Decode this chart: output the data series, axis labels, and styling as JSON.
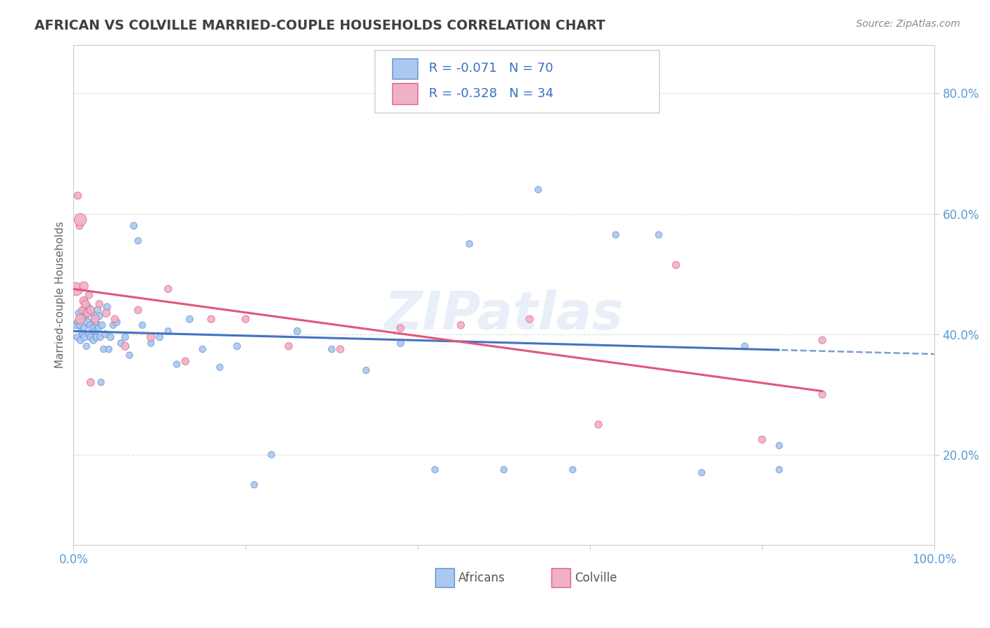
{
  "title": "AFRICAN VS COLVILLE MARRIED-COUPLE HOUSEHOLDS CORRELATION CHART",
  "source": "Source: ZipAtlas.com",
  "ylabel": "Married-couple Households",
  "watermark": "ZIPatlas",
  "africans": {
    "label": "Africans",
    "R": -0.071,
    "N": 70,
    "color": "#aac8f0",
    "edge_color": "#6090d0",
    "line_color": "#4472c4",
    "x": [
      0.003,
      0.004,
      0.005,
      0.006,
      0.007,
      0.008,
      0.009,
      0.01,
      0.011,
      0.012,
      0.012,
      0.013,
      0.014,
      0.015,
      0.016,
      0.017,
      0.018,
      0.019,
      0.02,
      0.021,
      0.022,
      0.023,
      0.024,
      0.025,
      0.026,
      0.027,
      0.028,
      0.029,
      0.03,
      0.031,
      0.032,
      0.033,
      0.035,
      0.037,
      0.039,
      0.041,
      0.043,
      0.046,
      0.05,
      0.055,
      0.06,
      0.065,
      0.07,
      0.075,
      0.08,
      0.09,
      0.1,
      0.11,
      0.12,
      0.135,
      0.15,
      0.17,
      0.19,
      0.21,
      0.23,
      0.26,
      0.3,
      0.34,
      0.38,
      0.42,
      0.46,
      0.5,
      0.54,
      0.58,
      0.63,
      0.68,
      0.73,
      0.78,
      0.82,
      0.82
    ],
    "y": [
      0.415,
      0.395,
      0.42,
      0.435,
      0.415,
      0.39,
      0.405,
      0.425,
      0.4,
      0.44,
      0.41,
      0.395,
      0.43,
      0.38,
      0.42,
      0.445,
      0.4,
      0.415,
      0.395,
      0.435,
      0.41,
      0.39,
      0.425,
      0.405,
      0.42,
      0.395,
      0.44,
      0.41,
      0.43,
      0.395,
      0.32,
      0.415,
      0.375,
      0.4,
      0.445,
      0.375,
      0.395,
      0.415,
      0.42,
      0.385,
      0.395,
      0.365,
      0.58,
      0.555,
      0.415,
      0.385,
      0.395,
      0.405,
      0.35,
      0.425,
      0.375,
      0.345,
      0.38,
      0.15,
      0.2,
      0.405,
      0.375,
      0.34,
      0.385,
      0.175,
      0.55,
      0.175,
      0.64,
      0.175,
      0.565,
      0.565,
      0.17,
      0.38,
      0.215,
      0.175
    ],
    "sizes": [
      55,
      45,
      50,
      45,
      45,
      50,
      40,
      55,
      45,
      50,
      45,
      55,
      50,
      45,
      55,
      50,
      45,
      45,
      50,
      45,
      45,
      50,
      45,
      50,
      45,
      50,
      55,
      45,
      50,
      45,
      45,
      50,
      45,
      50,
      55,
      45,
      50,
      45,
      55,
      45,
      50,
      45,
      50,
      45,
      45,
      45,
      50,
      45,
      45,
      50,
      45,
      45,
      50,
      45,
      45,
      50,
      45,
      45,
      50,
      45,
      45,
      45,
      45,
      45,
      45,
      45,
      45,
      45,
      45,
      45
    ]
  },
  "colville": {
    "label": "Colville",
    "R": -0.328,
    "N": 34,
    "color": "#f0b0c8",
    "edge_color": "#e06080",
    "line_color": "#e05878",
    "x": [
      0.003,
      0.005,
      0.007,
      0.008,
      0.01,
      0.012,
      0.014,
      0.016,
      0.018,
      0.02,
      0.025,
      0.03,
      0.038,
      0.048,
      0.06,
      0.075,
      0.09,
      0.11,
      0.13,
      0.16,
      0.2,
      0.25,
      0.31,
      0.38,
      0.45,
      0.53,
      0.61,
      0.7,
      0.8,
      0.87,
      0.87,
      0.02,
      0.008,
      0.012
    ],
    "y": [
      0.475,
      0.63,
      0.58,
      0.425,
      0.44,
      0.455,
      0.45,
      0.435,
      0.465,
      0.44,
      0.425,
      0.45,
      0.435,
      0.425,
      0.38,
      0.44,
      0.395,
      0.475,
      0.355,
      0.425,
      0.425,
      0.38,
      0.375,
      0.41,
      0.415,
      0.425,
      0.25,
      0.515,
      0.225,
      0.3,
      0.39,
      0.32,
      0.59,
      0.48
    ],
    "sizes": [
      180,
      55,
      55,
      100,
      55,
      75,
      70,
      65,
      55,
      65,
      75,
      55,
      65,
      55,
      65,
      55,
      65,
      55,
      55,
      55,
      55,
      55,
      55,
      55,
      55,
      55,
      55,
      55,
      55,
      55,
      55,
      60,
      160,
      80
    ]
  },
  "xlim": [
    0.0,
    1.0
  ],
  "ylim": [
    0.05,
    0.88
  ],
  "yticks": [
    0.2,
    0.4,
    0.6,
    0.8
  ],
  "ytick_labels": [
    "20.0%",
    "40.0%",
    "60.0%",
    "80.0%"
  ],
  "xticks": [
    0.0,
    0.2,
    0.4,
    0.6,
    0.8,
    1.0
  ],
  "xtick_labels": [
    "0.0%",
    "",
    "",
    "",
    "",
    "100.0%"
  ],
  "grid_color": "#dddddd",
  "background_color": "#ffffff",
  "title_color": "#404040",
  "source_color": "#888888",
  "axis_tick_color": "#5b9bd5",
  "legend_text_color": "#3a6fc4",
  "africans_line_intercept": 0.405,
  "africans_line_slope": -0.038,
  "colville_line_intercept": 0.475,
  "colville_line_slope": -0.195
}
